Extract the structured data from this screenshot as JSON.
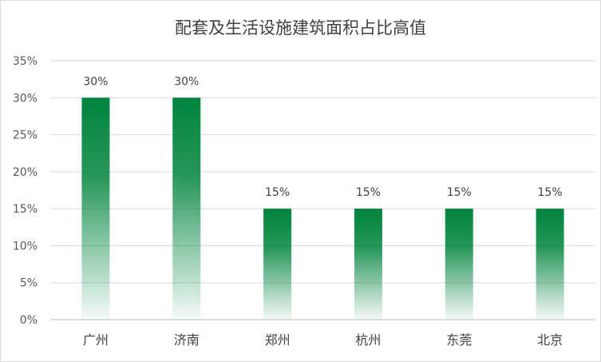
{
  "chart_data": {
    "type": "bar",
    "title": "配套及生活设施建筑面积占比高值",
    "xlabel": "",
    "ylabel": "",
    "categories": [
      "广州",
      "济南",
      "郑州",
      "杭州",
      "东莞",
      "北京"
    ],
    "values": [
      30,
      30,
      15,
      15,
      15,
      15
    ],
    "data_labels": [
      "30%",
      "30%",
      "15%",
      "15%",
      "15%",
      "15%"
    ],
    "ylim": [
      0,
      35
    ],
    "y_ticks": [
      0,
      5,
      10,
      15,
      20,
      25,
      30,
      35
    ],
    "y_tick_labels": [
      "0%",
      "5%",
      "10%",
      "15%",
      "20%",
      "25%",
      "30%",
      "35%"
    ],
    "grid": true,
    "legend": "none",
    "bar_color": "#00843D"
  }
}
